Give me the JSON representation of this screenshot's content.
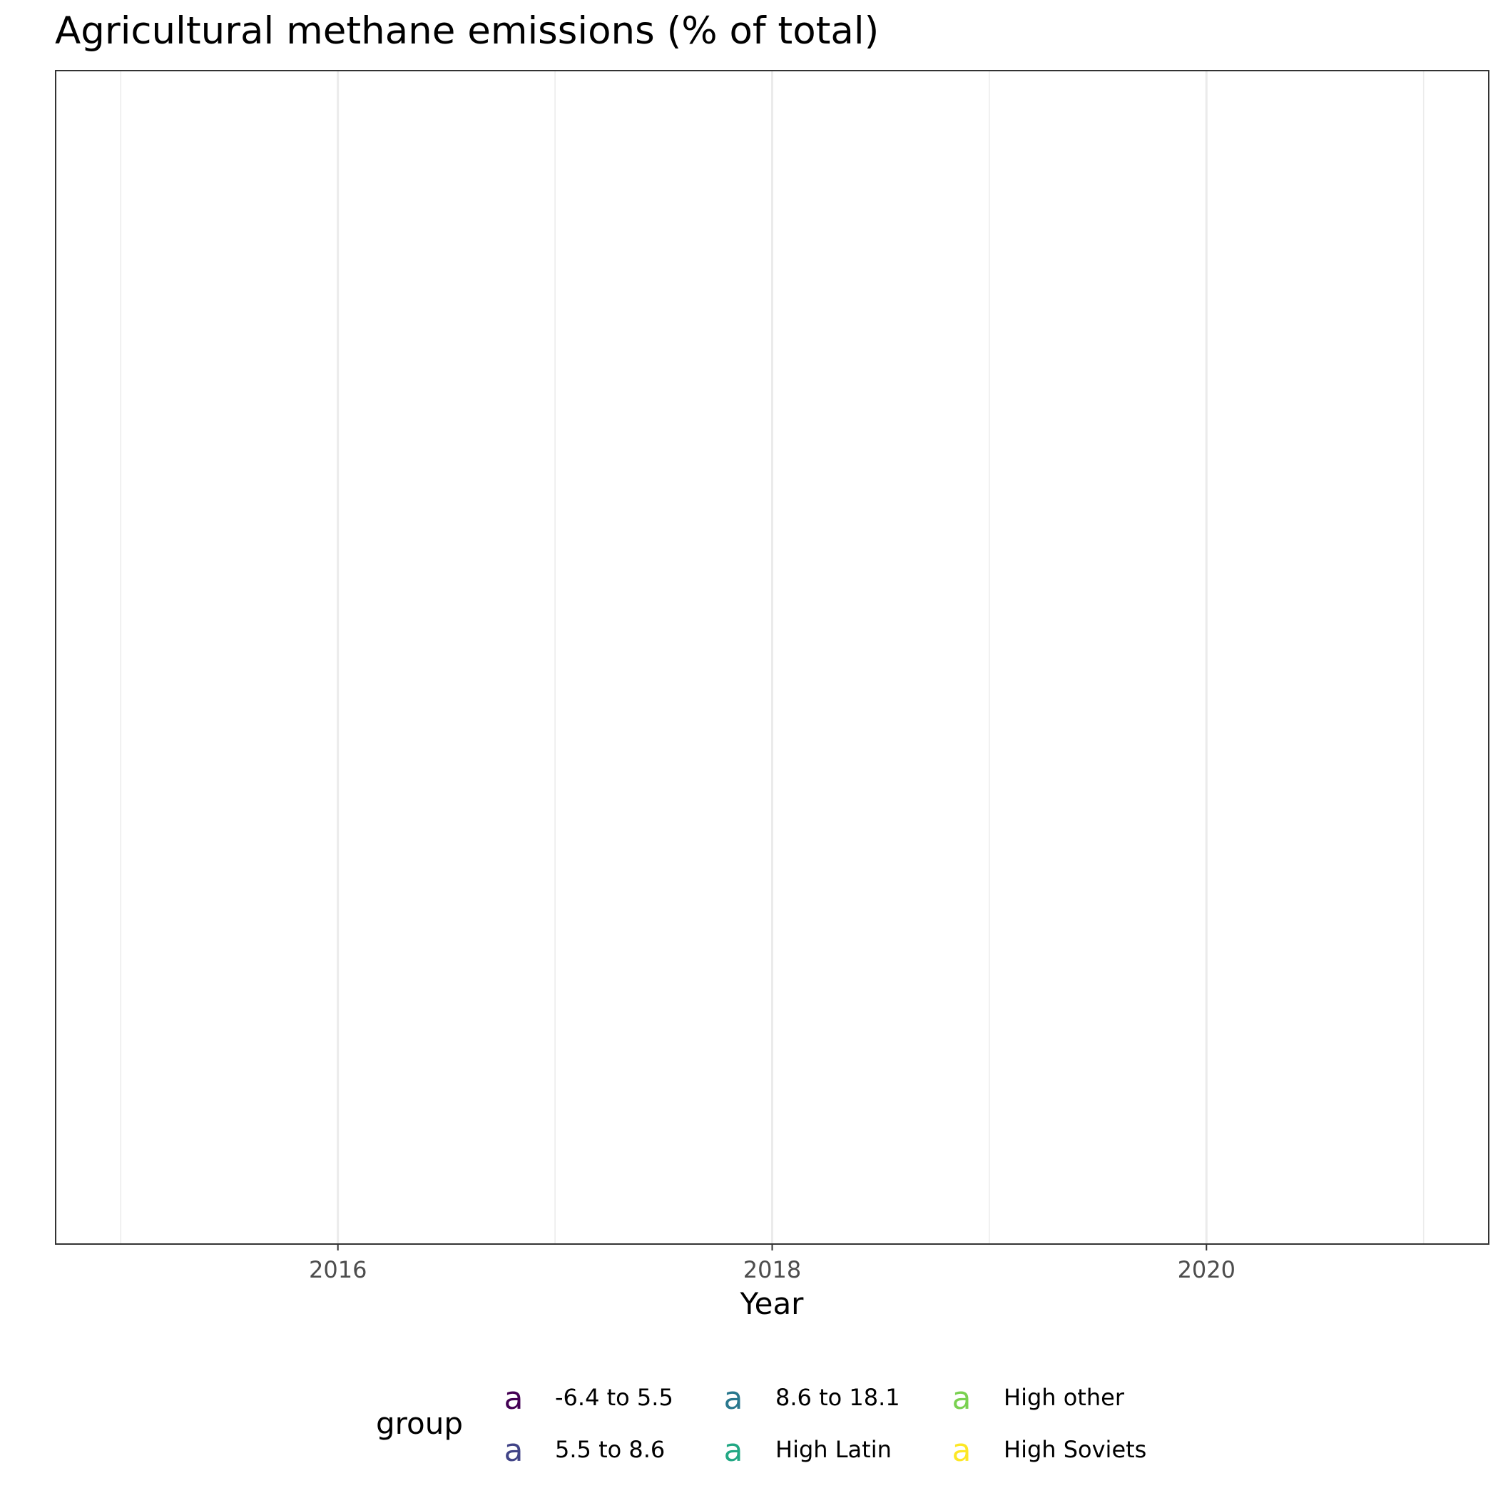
{
  "chart_data": {
    "type": "line",
    "title": "Agricultural methane emissions (% of total)",
    "xlabel": "Year",
    "ylabel": "",
    "xlim": [
      2014.7,
      2021.3
    ],
    "x_ticks": [
      2016,
      2018,
      2020
    ],
    "x_minor_ticks": [
      2015,
      2017,
      2019,
      2021
    ],
    "grid": true,
    "legend": {
      "title": "group",
      "position": "bottom",
      "key_glyph": "a",
      "entries": [
        {
          "name": "-6.4 to 5.5",
          "color": "#440154"
        },
        {
          "name": "5.5 to 8.6",
          "color": "#414487"
        },
        {
          "name": "8.6 to 18.1",
          "color": "#2A788E"
        },
        {
          "name": "High Latin",
          "color": "#22A884"
        },
        {
          "name": "High other",
          "color": "#7AD151"
        },
        {
          "name": "High Soviets",
          "color": "#FDE725"
        }
      ]
    },
    "series": []
  }
}
